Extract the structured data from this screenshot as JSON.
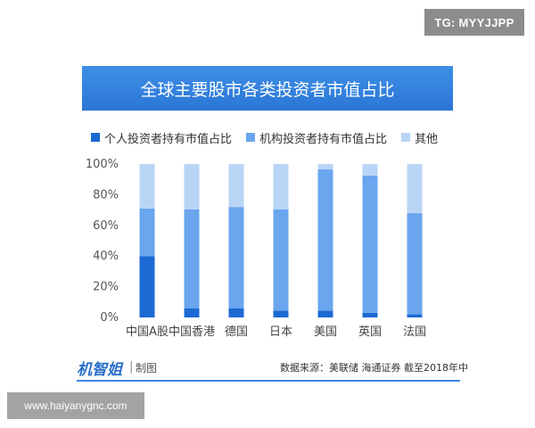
{
  "badge": "TG: MYYJJPP",
  "watermark": "www.haiyanygnc.com",
  "footer": {
    "logo": "机智姐",
    "separator": "|",
    "made_by": "制图",
    "source": "数据来源：美联储 海通证券 截至2018年中"
  },
  "colors": {
    "individual": "#1c69d3",
    "institutional": "#6aa5ee",
    "other": "#b9d5f6",
    "title_bg": "#2f7fe0",
    "text": "#333333"
  },
  "chart_data": {
    "type": "bar",
    "stacked": true,
    "title": "全球主要股市各类投资者市值占比",
    "categories": [
      "中国A股",
      "中国香港",
      "德国",
      "日本",
      "美国",
      "英国",
      "法国"
    ],
    "series": [
      {
        "name": "个人投资者持有市值占比",
        "values": [
          40,
          6,
          6,
          4.5,
          4.5,
          3,
          2
        ]
      },
      {
        "name": "机构投资者持有市值占比",
        "values": [
          31,
          64.5,
          66,
          66,
          92,
          89.5,
          66
        ]
      },
      {
        "name": "其他",
        "values": [
          29,
          29.5,
          28,
          29.5,
          3.5,
          7.5,
          32
        ]
      }
    ],
    "yticks": [
      "0%",
      "20%",
      "40%",
      "60%",
      "80%",
      "100%"
    ],
    "ylim": [
      0,
      100
    ],
    "grid": false,
    "legend_position": "top-left"
  }
}
